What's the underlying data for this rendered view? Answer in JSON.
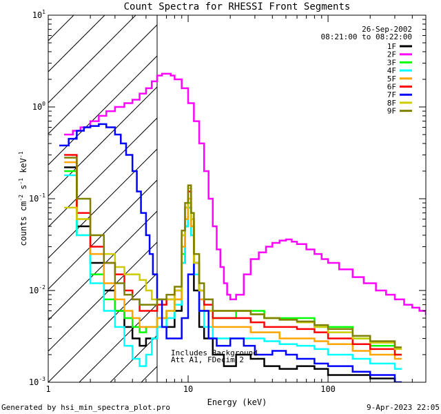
{
  "chart_data": {
    "type": "line",
    "title": "Count Spectra for RHESSI Front Segments",
    "xlabel": "Energy (keV)",
    "ylabel": "counts cm",
    "ylabel_sup1": "-2",
    "ylabel_mid": " s",
    "ylabel_sup2": "-1",
    "ylabel_mid2": " keV",
    "ylabel_sup3": "-1",
    "xscale": "log",
    "yscale": "log",
    "xlim": [
      1,
      500
    ],
    "ylim": [
      0.001,
      10
    ],
    "x_ticks": [
      {
        "value": 1,
        "label": "1"
      },
      {
        "value": 10,
        "label": "10"
      },
      {
        "value": 100,
        "label": "100"
      }
    ],
    "y_ticks": [
      {
        "value": 0.001,
        "base": "10",
        "exp": "-3"
      },
      {
        "value": 0.01,
        "base": "10",
        "exp": "-2"
      },
      {
        "value": 0.1,
        "base": "10",
        "exp": "-1"
      },
      {
        "value": 1,
        "base": "10",
        "exp": "0"
      },
      {
        "value": 10,
        "base": "10",
        "exp": "1"
      }
    ],
    "hatched_region_max_keV": 6,
    "date": "26-Sep-2002",
    "time_range": "08:21:00 to 08:22:00",
    "annotation_line1": "Includes Background",
    "annotation_line2": "Att A1, FDecim 2",
    "footer_left": "Generated by hsi_min_spectra_plot.pro",
    "footer_right": "9-Apr-2023 22:05",
    "series": [
      {
        "name": "1F",
        "color": "#000000",
        "x": [
          1.3,
          1.6,
          2.0,
          2.5,
          3.0,
          3.5,
          4.0,
          4.5,
          5.0,
          5.5,
          6.0,
          7.0,
          8.0,
          9.0,
          9.5,
          10.0,
          10.5,
          11.0,
          12.0,
          13.0,
          15.0,
          18.0,
          22.0,
          28.0,
          35.0,
          45.0,
          60.0,
          80.0,
          100.0,
          150.0,
          200.0,
          300.0
        ],
        "y": [
          0.22,
          0.05,
          0.02,
          0.01,
          0.006,
          0.004,
          0.003,
          0.0025,
          0.003,
          0.003,
          0.004,
          0.004,
          0.006,
          0.02,
          0.05,
          0.08,
          0.04,
          0.01,
          0.004,
          0.003,
          0.002,
          0.0015,
          0.002,
          0.0018,
          0.0015,
          0.0014,
          0.0015,
          0.0014,
          0.0012,
          0.0012,
          0.0011,
          0.001
        ]
      },
      {
        "name": "2F",
        "color": "#ff00ff",
        "x": [
          1.3,
          1.5,
          1.7,
          2.0,
          2.3,
          2.6,
          3.0,
          3.5,
          4.0,
          4.5,
          5.0,
          5.5,
          6.0,
          6.5,
          7.0,
          7.5,
          8.0,
          9.0,
          10.0,
          11.0,
          12.0,
          13.0,
          14.0,
          15.0,
          16.0,
          17.0,
          18.0,
          19.0,
          20.0,
          22.0,
          25.0,
          28.0,
          32.0,
          36.0,
          40.0,
          45.0,
          50.0,
          55.0,
          60.0,
          70.0,
          80.0,
          90.0,
          100.0,
          120.0,
          150.0,
          180.0,
          220.0,
          260.0,
          300.0,
          350.0,
          400.0,
          450.0,
          500.0
        ],
        "y": [
          0.5,
          0.55,
          0.6,
          0.7,
          0.8,
          0.9,
          1.0,
          1.1,
          1.2,
          1.4,
          1.6,
          1.9,
          2.2,
          2.3,
          2.3,
          2.2,
          2.0,
          1.6,
          1.1,
          0.7,
          0.4,
          0.2,
          0.1,
          0.05,
          0.028,
          0.018,
          0.012,
          0.009,
          0.008,
          0.009,
          0.015,
          0.022,
          0.026,
          0.03,
          0.033,
          0.035,
          0.036,
          0.034,
          0.032,
          0.028,
          0.025,
          0.022,
          0.02,
          0.017,
          0.014,
          0.012,
          0.01,
          0.009,
          0.008,
          0.007,
          0.0065,
          0.006,
          0.0055
        ]
      },
      {
        "name": "3F",
        "color": "#00ff00",
        "x": [
          1.3,
          1.6,
          2.0,
          2.5,
          3.0,
          3.5,
          4.0,
          4.5,
          5.0,
          5.5,
          6.0,
          7.0,
          8.0,
          9.0,
          9.5,
          10.0,
          10.5,
          11.0,
          12.0,
          13.0,
          15.0,
          18.0,
          22.0,
          28.0,
          35.0,
          45.0,
          60.0,
          80.0,
          100.0,
          150.0,
          200.0,
          300.0
        ],
        "y": [
          0.2,
          0.04,
          0.015,
          0.008,
          0.006,
          0.005,
          0.004,
          0.0035,
          0.004,
          0.004,
          0.005,
          0.006,
          0.008,
          0.025,
          0.06,
          0.09,
          0.05,
          0.02,
          0.008,
          0.006,
          0.005,
          0.005,
          0.006,
          0.006,
          0.005,
          0.005,
          0.005,
          0.004,
          0.004,
          0.003,
          0.0025,
          0.002
        ]
      },
      {
        "name": "4F",
        "color": "#00ffff",
        "x": [
          1.3,
          1.6,
          2.0,
          2.5,
          3.0,
          3.5,
          4.0,
          4.5,
          5.0,
          5.5,
          6.0,
          7.0,
          8.0,
          9.0,
          9.5,
          10.0,
          10.5,
          11.0,
          12.0,
          13.0,
          15.0,
          18.0,
          22.0,
          28.0,
          35.0,
          45.0,
          60.0,
          80.0,
          100.0,
          150.0,
          200.0,
          300.0
        ],
        "y": [
          0.18,
          0.04,
          0.012,
          0.006,
          0.004,
          0.0025,
          0.0018,
          0.0015,
          0.002,
          0.003,
          0.004,
          0.005,
          0.007,
          0.02,
          0.05,
          0.08,
          0.04,
          0.015,
          0.006,
          0.004,
          0.003,
          0.003,
          0.003,
          0.003,
          0.0028,
          0.0026,
          0.0025,
          0.0023,
          0.002,
          0.0018,
          0.0016,
          0.0014
        ]
      },
      {
        "name": "5F",
        "color": "#ffa500",
        "x": [
          1.3,
          1.6,
          2.0,
          2.5,
          3.0,
          3.5,
          4.0,
          4.5,
          5.0,
          5.5,
          6.0,
          7.0,
          8.0,
          9.0,
          9.5,
          10.0,
          10.5,
          11.0,
          12.0,
          13.0,
          15.0,
          18.0,
          22.0,
          28.0,
          35.0,
          45.0,
          60.0,
          80.0,
          100.0,
          150.0,
          200.0,
          300.0
        ],
        "y": [
          0.25,
          0.06,
          0.025,
          0.012,
          0.008,
          0.006,
          0.005,
          0.004,
          0.004,
          0.004,
          0.005,
          0.006,
          0.008,
          0.03,
          0.06,
          0.1,
          0.05,
          0.02,
          0.008,
          0.006,
          0.004,
          0.004,
          0.004,
          0.0035,
          0.0035,
          0.003,
          0.003,
          0.0028,
          0.0026,
          0.0022,
          0.002,
          0.0018
        ]
      },
      {
        "name": "6F",
        "color": "#ff0000",
        "x": [
          1.3,
          1.6,
          2.0,
          2.5,
          3.0,
          3.5,
          4.0,
          4.5,
          5.0,
          5.5,
          6.0,
          7.0,
          8.0,
          9.0,
          9.5,
          10.0,
          10.5,
          11.0,
          12.0,
          13.0,
          15.0,
          18.0,
          22.0,
          28.0,
          35.0,
          45.0,
          60.0,
          80.0,
          100.0,
          150.0,
          200.0,
          300.0
        ],
        "y": [
          0.3,
          0.07,
          0.03,
          0.02,
          0.015,
          0.01,
          0.008,
          0.006,
          0.006,
          0.006,
          0.007,
          0.008,
          0.01,
          0.04,
          0.08,
          0.12,
          0.06,
          0.02,
          0.01,
          0.007,
          0.005,
          0.005,
          0.005,
          0.0045,
          0.004,
          0.004,
          0.0038,
          0.0035,
          0.003,
          0.0026,
          0.0023,
          0.002
        ]
      },
      {
        "name": "7F",
        "color": "#0000ff",
        "x": [
          1.2,
          1.4,
          1.6,
          1.8,
          2.0,
          2.3,
          2.6,
          3.0,
          3.3,
          3.6,
          4.0,
          4.3,
          4.6,
          5.0,
          5.3,
          5.6,
          6.0,
          6.5,
          7.0,
          8.0,
          9.0,
          10.0,
          11.0,
          12.0,
          14.0,
          16.0,
          20.0,
          25.0,
          30.0,
          40.0,
          50.0,
          60.0,
          80.0,
          100.0,
          150.0,
          200.0,
          300.0
        ],
        "y": [
          0.38,
          0.45,
          0.55,
          0.6,
          0.62,
          0.65,
          0.6,
          0.5,
          0.4,
          0.3,
          0.2,
          0.12,
          0.07,
          0.04,
          0.025,
          0.015,
          0.008,
          0.004,
          0.003,
          0.003,
          0.005,
          0.015,
          0.02,
          0.006,
          0.003,
          0.0025,
          0.003,
          0.0025,
          0.002,
          0.0022,
          0.002,
          0.0018,
          0.0016,
          0.0015,
          0.0013,
          0.0012,
          0.001
        ]
      },
      {
        "name": "8F",
        "color": "#cccc00",
        "x": [
          1.3,
          1.6,
          2.0,
          2.5,
          3.0,
          3.5,
          4.0,
          4.5,
          5.0,
          5.5,
          6.0,
          7.0,
          8.0,
          9.0,
          9.5,
          10.0,
          10.5,
          11.0,
          12.0,
          13.0,
          15.0,
          18.0,
          22.0,
          28.0,
          35.0,
          45.0,
          60.0,
          80.0,
          100.0,
          150.0,
          200.0,
          300.0
        ],
        "y": [
          0.08,
          0.06,
          0.04,
          0.025,
          0.018,
          0.015,
          0.015,
          0.013,
          0.01,
          0.008,
          0.008,
          0.008,
          0.01,
          0.04,
          0.08,
          0.13,
          0.06,
          0.02,
          0.01,
          0.008,
          0.006,
          0.006,
          0.006,
          0.0055,
          0.005,
          0.0048,
          0.0045,
          0.004,
          0.0035,
          0.003,
          0.0027,
          0.0023
        ]
      },
      {
        "name": "9F",
        "color": "#808000",
        "x": [
          1.3,
          1.6,
          2.0,
          2.5,
          3.0,
          3.5,
          4.0,
          4.5,
          5.0,
          5.5,
          6.0,
          7.0,
          8.0,
          9.0,
          9.5,
          10.0,
          10.5,
          11.0,
          12.0,
          13.0,
          15.0,
          18.0,
          22.0,
          28.0,
          35.0,
          45.0,
          60.0,
          80.0,
          100.0,
          150.0,
          200.0,
          300.0
        ],
        "y": [
          0.28,
          0.1,
          0.04,
          0.02,
          0.012,
          0.009,
          0.008,
          0.007,
          0.007,
          0.007,
          0.008,
          0.009,
          0.011,
          0.045,
          0.09,
          0.14,
          0.07,
          0.025,
          0.012,
          0.008,
          0.006,
          0.006,
          0.006,
          0.0055,
          0.005,
          0.0048,
          0.0046,
          0.0042,
          0.0038,
          0.0032,
          0.0028,
          0.0024
        ]
      }
    ]
  }
}
